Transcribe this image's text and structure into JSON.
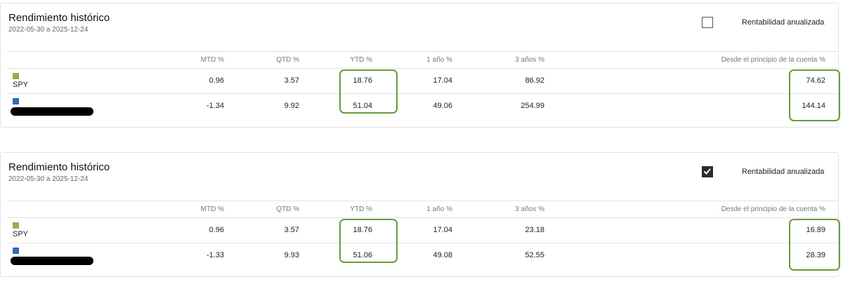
{
  "panels": [
    {
      "title": "Rendimiento histórico",
      "date_range": "2022-05-30 a 2025-12-24",
      "toggle_label": "Rentabilidad anualizada",
      "toggle_checked": false,
      "highlighted_columns": [
        2,
        5
      ],
      "table": {
        "columns": [
          "MTD %",
          "QTD %",
          "YTD %",
          "1 año %",
          "3 años %",
          "Desde el principio de la cuenta %"
        ],
        "rows": [
          {
            "name": "SPY",
            "color": "#8db54a",
            "values": [
              0.96,
              3.57,
              18.76,
              17.04,
              86.92,
              74.62
            ]
          },
          {
            "color": "#2f6db5",
            "values": [
              -1.34,
              9.92,
              51.04,
              49.06,
              254.99,
              144.14
            ]
          }
        ]
      }
    },
    {
      "title": "Rendimiento histórico",
      "date_range": "2022-05-30 a 2025-12-24",
      "toggle_label": "Rentabilidad anualizada",
      "toggle_checked": true,
      "highlighted_columns": [
        2,
        5
      ],
      "table": {
        "columns": [
          "MTD %",
          "QTD %",
          "YTD %",
          "1 año %",
          "3 años %",
          "Desde el principio de la cuenta %"
        ],
        "rows": [
          {
            "name": "SPY",
            "color": "#8db54a",
            "values": [
              0.96,
              3.57,
              18.76,
              17.04,
              23.18,
              16.89
            ]
          },
          {
            "color": "#2f6db5",
            "values": [
              -1.33,
              9.93,
              51.06,
              49.08,
              52.55,
              28.39
            ]
          }
        ]
      }
    }
  ]
}
